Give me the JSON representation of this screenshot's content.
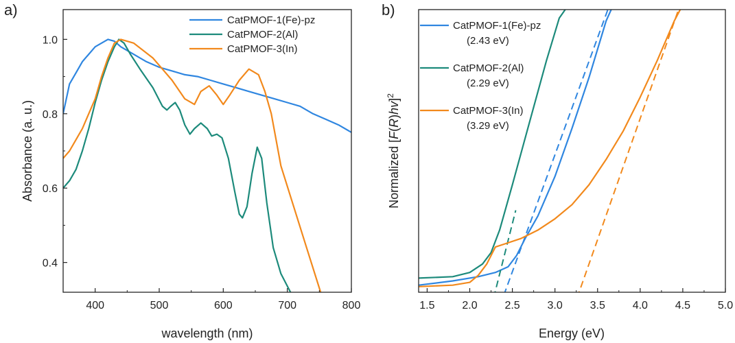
{
  "chart_data": [
    {
      "type": "line",
      "panel_label": "a)",
      "xlabel": "wavelength (nm)",
      "ylabel": "Absorbance (a. u.)",
      "xlim": [
        350,
        800
      ],
      "ylim": [
        0.32,
        1.08
      ],
      "xticks": [
        400,
        500,
        600,
        700,
        800
      ],
      "yticks": [
        0.4,
        0.6,
        0.8,
        1.0
      ],
      "ytick_labels": [
        "0.4",
        "0.6",
        "0.8",
        "1.0"
      ],
      "grid": false,
      "legend_position": "top-right",
      "series": [
        {
          "name": "CatPMOF-1(Fe)-pz",
          "color": "#2f86e0",
          "x": [
            350,
            360,
            370,
            380,
            390,
            400,
            410,
            420,
            430,
            440,
            460,
            480,
            500,
            520,
            540,
            560,
            580,
            600,
            620,
            640,
            660,
            680,
            700,
            720,
            740,
            760,
            780,
            800
          ],
          "y": [
            0.8,
            0.88,
            0.91,
            0.94,
            0.96,
            0.98,
            0.99,
            1.0,
            0.995,
            0.98,
            0.96,
            0.94,
            0.925,
            0.915,
            0.905,
            0.9,
            0.89,
            0.88,
            0.87,
            0.86,
            0.85,
            0.84,
            0.83,
            0.82,
            0.8,
            0.785,
            0.77,
            0.75
          ]
        },
        {
          "name": "CatPMOF-2(Al)",
          "color": "#1c8a7b",
          "x": [
            350,
            360,
            370,
            380,
            390,
            400,
            410,
            420,
            430,
            437,
            445,
            455,
            470,
            490,
            505,
            512,
            518,
            525,
            532,
            540,
            548,
            555,
            565,
            575,
            582,
            590,
            598,
            608,
            618,
            625,
            630,
            637,
            645,
            653,
            660,
            668,
            678,
            690,
            705
          ],
          "y": [
            0.6,
            0.62,
            0.65,
            0.7,
            0.76,
            0.83,
            0.89,
            0.94,
            0.98,
            1.0,
            0.99,
            0.96,
            0.92,
            0.87,
            0.82,
            0.81,
            0.82,
            0.83,
            0.81,
            0.77,
            0.745,
            0.76,
            0.775,
            0.76,
            0.74,
            0.745,
            0.735,
            0.68,
            0.59,
            0.53,
            0.52,
            0.55,
            0.64,
            0.71,
            0.68,
            0.56,
            0.44,
            0.37,
            0.32
          ]
        },
        {
          "name": "CatPMOF-3(In)",
          "color": "#f2891c",
          "x": [
            350,
            360,
            370,
            380,
            390,
            400,
            410,
            420,
            430,
            440,
            450,
            460,
            475,
            490,
            505,
            520,
            540,
            555,
            565,
            578,
            590,
            600,
            610,
            625,
            640,
            655,
            665,
            675,
            690,
            710,
            730,
            752
          ],
          "y": [
            0.68,
            0.7,
            0.73,
            0.76,
            0.8,
            0.84,
            0.9,
            0.95,
            0.99,
            1.0,
            0.995,
            0.99,
            0.97,
            0.95,
            0.92,
            0.89,
            0.84,
            0.825,
            0.86,
            0.875,
            0.85,
            0.825,
            0.85,
            0.89,
            0.92,
            0.905,
            0.86,
            0.8,
            0.66,
            0.55,
            0.44,
            0.32
          ]
        }
      ]
    },
    {
      "type": "line",
      "panel_label": "b)",
      "xlabel": "Energy (eV)",
      "ylabel_parts": [
        "Normalized [",
        "F",
        "(",
        "R",
        ")",
        "hv",
        "]",
        "2"
      ],
      "xlim": [
        1.4,
        5.0
      ],
      "ylim": [
        0,
        1
      ],
      "xticks": [
        1.5,
        2.0,
        2.5,
        3.0,
        3.5,
        4.0,
        4.5,
        5.0
      ],
      "xtick_labels": [
        "1.5",
        "2.0",
        "2.5",
        "3.0",
        "3.5",
        "4.0",
        "4.5",
        "5.0"
      ],
      "grid": false,
      "legend_position": "top-left",
      "series": [
        {
          "name": "CatPMOF-1(Fe)-pz",
          "band_gap_label": "(2.43 eV)",
          "color": "#2f86e0",
          "x": [
            1.4,
            1.8,
            2.1,
            2.3,
            2.45,
            2.55,
            2.65,
            2.8,
            3.0,
            3.2,
            3.4,
            3.6,
            3.66
          ],
          "y": [
            0.025,
            0.04,
            0.055,
            0.07,
            0.09,
            0.13,
            0.19,
            0.27,
            0.41,
            0.58,
            0.76,
            0.96,
            1.0
          ],
          "tangent": {
            "x": [
              2.4,
              3.62
            ],
            "y": [
              -0.01,
              1.0
            ]
          }
        },
        {
          "name": "CatPMOF-2(Al)",
          "band_gap_label": "(2.29 eV)",
          "color": "#1c8a7b",
          "x": [
            1.4,
            1.8,
            2.0,
            2.15,
            2.25,
            2.35,
            2.5,
            2.7,
            2.9,
            3.05,
            3.12
          ],
          "y": [
            0.05,
            0.055,
            0.07,
            0.1,
            0.14,
            0.22,
            0.38,
            0.6,
            0.82,
            0.97,
            1.0
          ],
          "tangent": {
            "x": [
              2.28,
              2.54
            ],
            "y": [
              -0.02,
              0.29
            ]
          }
        },
        {
          "name": "CatPMOF-3(In)",
          "band_gap_label": "(3.29 eV)",
          "color": "#f2891c",
          "x": [
            1.4,
            1.8,
            2.0,
            2.1,
            2.2,
            2.3,
            2.4,
            2.6,
            2.8,
            3.0,
            3.2,
            3.4,
            3.6,
            3.8,
            4.0,
            4.2,
            4.4,
            4.47
          ],
          "y": [
            0.02,
            0.025,
            0.035,
            0.06,
            0.1,
            0.16,
            0.17,
            0.19,
            0.22,
            0.26,
            0.31,
            0.38,
            0.47,
            0.57,
            0.69,
            0.82,
            0.96,
            1.0
          ],
          "tangent": {
            "x": [
              3.26,
              4.45
            ],
            "y": [
              -0.02,
              1.0
            ]
          }
        }
      ]
    }
  ]
}
